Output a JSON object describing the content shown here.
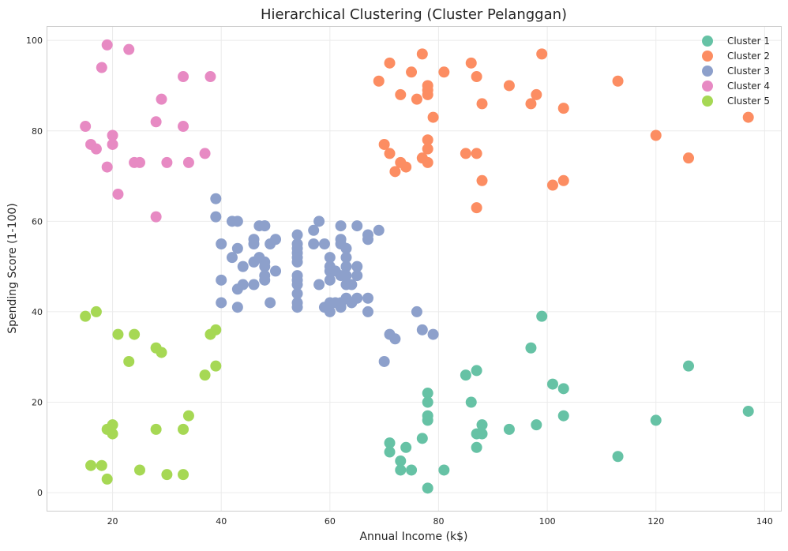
{
  "chart_data": {
    "type": "scatter",
    "title": "Hierarchical Clustering (Cluster Pelanggan)",
    "xlabel": "Annual Income (k$)",
    "ylabel": "Spending Score (1-100)",
    "xlim": [
      8,
      143
    ],
    "ylim": [
      -4,
      103
    ],
    "xticks": [
      20,
      40,
      60,
      80,
      100,
      120,
      140
    ],
    "yticks": [
      0,
      20,
      40,
      60,
      80,
      100
    ],
    "grid": true,
    "legend_position": "top-right",
    "series": [
      {
        "name": "Cluster 1",
        "color": "#66c2a5",
        "points": [
          [
            71,
            11
          ],
          [
            71,
            9
          ],
          [
            73,
            5
          ],
          [
            73,
            7
          ],
          [
            74,
            10
          ],
          [
            75,
            5
          ],
          [
            77,
            12
          ],
          [
            78,
            1
          ],
          [
            78,
            16
          ],
          [
            78,
            17
          ],
          [
            78,
            20
          ],
          [
            78,
            22
          ],
          [
            81,
            5
          ],
          [
            85,
            26
          ],
          [
            86,
            20
          ],
          [
            87,
            27
          ],
          [
            87,
            13
          ],
          [
            87,
            10
          ],
          [
            88,
            13
          ],
          [
            88,
            15
          ],
          [
            93,
            14
          ],
          [
            97,
            32
          ],
          [
            98,
            15
          ],
          [
            99,
            39
          ],
          [
            101,
            24
          ],
          [
            103,
            17
          ],
          [
            103,
            23
          ],
          [
            113,
            8
          ],
          [
            120,
            16
          ],
          [
            126,
            28
          ],
          [
            137,
            18
          ]
        ]
      },
      {
        "name": "Cluster 2",
        "color": "#fc8d62",
        "points": [
          [
            69,
            91
          ],
          [
            70,
            77
          ],
          [
            71,
            95
          ],
          [
            71,
            75
          ],
          [
            72,
            71
          ],
          [
            73,
            88
          ],
          [
            73,
            73
          ],
          [
            74,
            72
          ],
          [
            75,
            93
          ],
          [
            76,
            87
          ],
          [
            77,
            97
          ],
          [
            77,
            74
          ],
          [
            78,
            90
          ],
          [
            78,
            88
          ],
          [
            78,
            89
          ],
          [
            78,
            78
          ],
          [
            78,
            76
          ],
          [
            78,
            73
          ],
          [
            79,
            83
          ],
          [
            81,
            93
          ],
          [
            85,
            75
          ],
          [
            86,
            95
          ],
          [
            87,
            92
          ],
          [
            87,
            75
          ],
          [
            87,
            63
          ],
          [
            88,
            86
          ],
          [
            88,
            69
          ],
          [
            93,
            90
          ],
          [
            97,
            86
          ],
          [
            98,
            88
          ],
          [
            99,
            97
          ],
          [
            101,
            68
          ],
          [
            103,
            85
          ],
          [
            103,
            69
          ],
          [
            113,
            91
          ],
          [
            120,
            79
          ],
          [
            126,
            74
          ],
          [
            137,
            83
          ]
        ]
      },
      {
        "name": "Cluster 3",
        "color": "#8da0cb",
        "points": [
          [
            39,
            61
          ],
          [
            39,
            65
          ],
          [
            40,
            55
          ],
          [
            40,
            47
          ],
          [
            40,
            42
          ],
          [
            42,
            52
          ],
          [
            42,
            60
          ],
          [
            43,
            54
          ],
          [
            43,
            60
          ],
          [
            43,
            45
          ],
          [
            43,
            41
          ],
          [
            44,
            50
          ],
          [
            44,
            46
          ],
          [
            46,
            51
          ],
          [
            46,
            46
          ],
          [
            46,
            56
          ],
          [
            46,
            55
          ],
          [
            47,
            52
          ],
          [
            47,
            59
          ],
          [
            48,
            51
          ],
          [
            48,
            59
          ],
          [
            48,
            50
          ],
          [
            48,
            48
          ],
          [
            48,
            59
          ],
          [
            48,
            47
          ],
          [
            49,
            55
          ],
          [
            49,
            42
          ],
          [
            50,
            49
          ],
          [
            50,
            56
          ],
          [
            54,
            47
          ],
          [
            54,
            54
          ],
          [
            54,
            53
          ],
          [
            54,
            48
          ],
          [
            54,
            52
          ],
          [
            54,
            42
          ],
          [
            54,
            51
          ],
          [
            54,
            55
          ],
          [
            54,
            41
          ],
          [
            54,
            44
          ],
          [
            54,
            57
          ],
          [
            54,
            46
          ],
          [
            57,
            58
          ],
          [
            57,
            55
          ],
          [
            58,
            60
          ],
          [
            58,
            46
          ],
          [
            59,
            55
          ],
          [
            59,
            41
          ],
          [
            60,
            49
          ],
          [
            60,
            40
          ],
          [
            60,
            42
          ],
          [
            60,
            52
          ],
          [
            60,
            47
          ],
          [
            60,
            50
          ],
          [
            61,
            42
          ],
          [
            61,
            49
          ],
          [
            62,
            41
          ],
          [
            62,
            48
          ],
          [
            62,
            59
          ],
          [
            62,
            55
          ],
          [
            62,
            56
          ],
          [
            62,
            42
          ],
          [
            63,
            50
          ],
          [
            63,
            46
          ],
          [
            63,
            43
          ],
          [
            63,
            48
          ],
          [
            63,
            52
          ],
          [
            63,
            54
          ],
          [
            64,
            42
          ],
          [
            64,
            46
          ],
          [
            65,
            48
          ],
          [
            65,
            50
          ],
          [
            65,
            43
          ],
          [
            65,
            59
          ],
          [
            67,
            43
          ],
          [
            67,
            57
          ],
          [
            67,
            56
          ],
          [
            67,
            40
          ],
          [
            69,
            58
          ],
          [
            70,
            29
          ],
          [
            71,
            35
          ],
          [
            72,
            34
          ],
          [
            76,
            40
          ],
          [
            77,
            36
          ],
          [
            79,
            35
          ]
        ]
      },
      {
        "name": "Cluster 4",
        "color": "#e78ac3",
        "points": [
          [
            15,
            81
          ],
          [
            16,
            77
          ],
          [
            17,
            76
          ],
          [
            18,
            94
          ],
          [
            19,
            72
          ],
          [
            19,
            99
          ],
          [
            20,
            77
          ],
          [
            20,
            79
          ],
          [
            21,
            66
          ],
          [
            23,
            98
          ],
          [
            24,
            73
          ],
          [
            25,
            73
          ],
          [
            28,
            82
          ],
          [
            28,
            61
          ],
          [
            29,
            87
          ],
          [
            30,
            73
          ],
          [
            33,
            92
          ],
          [
            33,
            81
          ],
          [
            34,
            73
          ],
          [
            37,
            75
          ],
          [
            38,
            92
          ]
        ]
      },
      {
        "name": "Cluster 5",
        "color": "#a6d854",
        "points": [
          [
            15,
            39
          ],
          [
            16,
            6
          ],
          [
            17,
            40
          ],
          [
            18,
            6
          ],
          [
            19,
            3
          ],
          [
            19,
            14
          ],
          [
            20,
            15
          ],
          [
            20,
            13
          ],
          [
            21,
            35
          ],
          [
            23,
            29
          ],
          [
            24,
            35
          ],
          [
            25,
            5
          ],
          [
            28,
            14
          ],
          [
            28,
            32
          ],
          [
            29,
            31
          ],
          [
            30,
            4
          ],
          [
            33,
            4
          ],
          [
            33,
            14
          ],
          [
            34,
            17
          ],
          [
            37,
            26
          ],
          [
            38,
            35
          ],
          [
            39,
            36
          ],
          [
            39,
            28
          ]
        ]
      }
    ]
  }
}
